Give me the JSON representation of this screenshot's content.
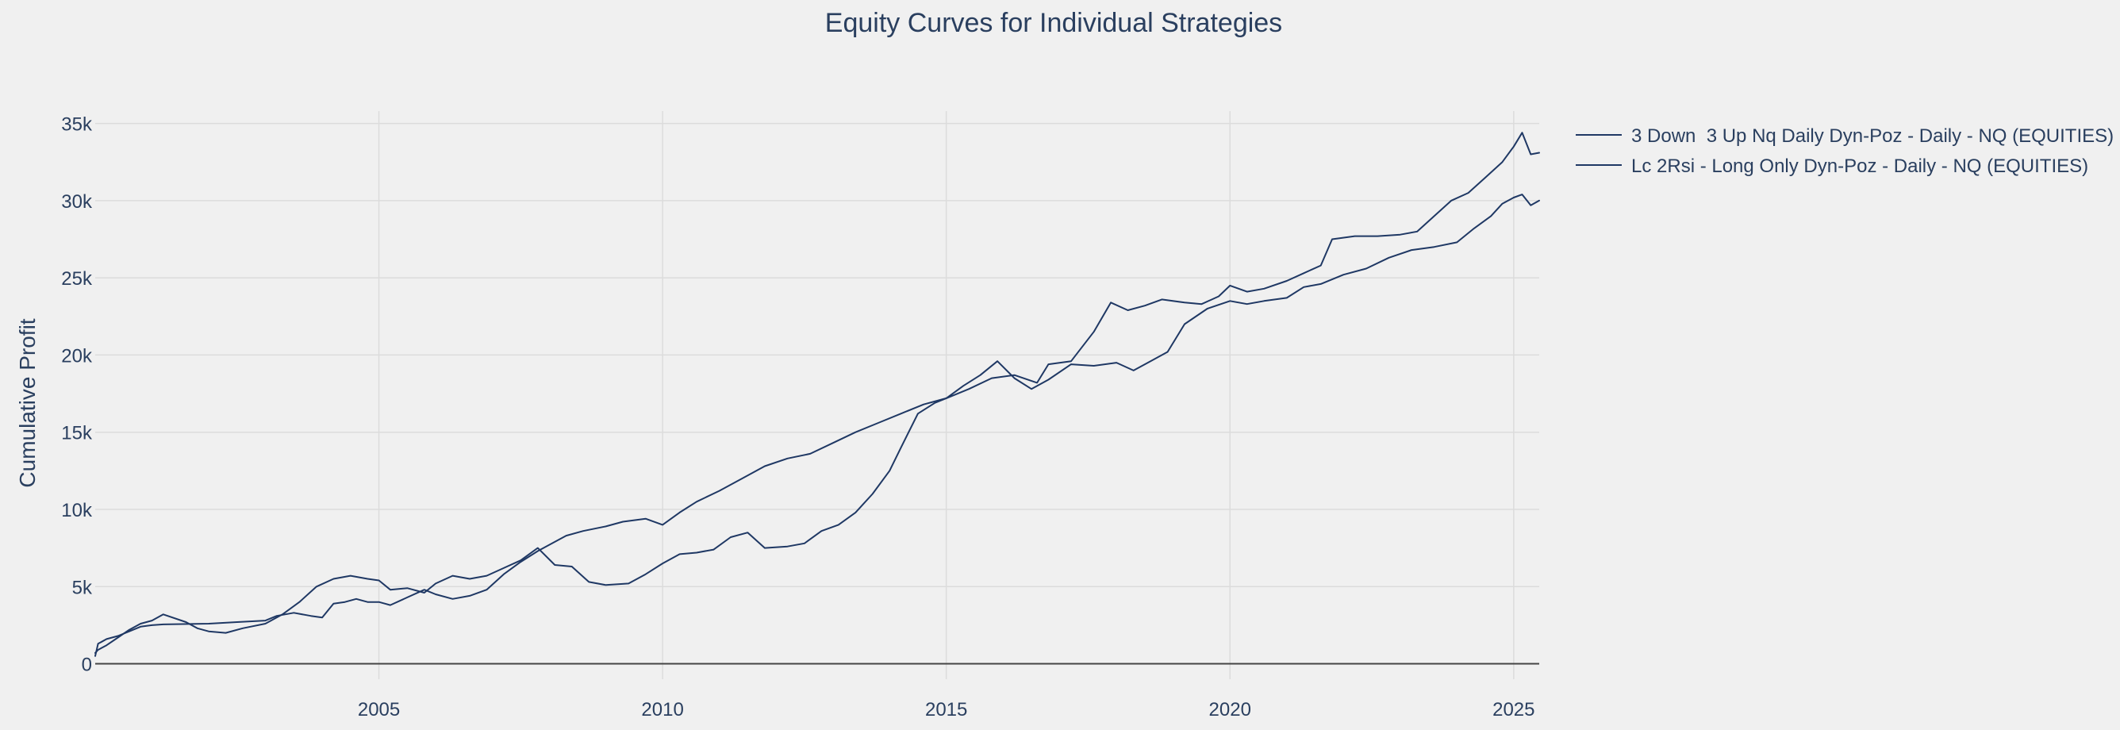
{
  "chart_data": {
    "type": "line",
    "title": "Equity Curves for Individual Strategies",
    "xlabel": "",
    "ylabel": "Cumulative Profit",
    "xlim": [
      2000.0,
      2025.45
    ],
    "ylim": [
      -1000,
      35800
    ],
    "x_ticks": [
      {
        "value": 2005,
        "label": "2005"
      },
      {
        "value": 2010,
        "label": "2010"
      },
      {
        "value": 2015,
        "label": "2015"
      },
      {
        "value": 2020,
        "label": "2020"
      },
      {
        "value": 2025,
        "label": "2025"
      }
    ],
    "y_ticks": [
      {
        "value": 0,
        "label": "0"
      },
      {
        "value": 5000,
        "label": "5k"
      },
      {
        "value": 10000,
        "label": "10k"
      },
      {
        "value": 15000,
        "label": "15k"
      },
      {
        "value": 20000,
        "label": "20k"
      },
      {
        "value": 25000,
        "label": "25k"
      },
      {
        "value": 30000,
        "label": "30k"
      },
      {
        "value": 35000,
        "label": "35k"
      }
    ],
    "grid": true,
    "legend_position": "top-right outside",
    "series": [
      {
        "name": "3 Down  3 Up Nq Daily Dyn-Poz - Daily - NQ (EQUITIES)",
        "color": "#1f3864",
        "points": [
          [
            2000.0,
            500
          ],
          [
            2000.05,
            1300
          ],
          [
            2000.2,
            1600
          ],
          [
            2000.4,
            1800
          ],
          [
            2000.6,
            2100
          ],
          [
            2000.8,
            2400
          ],
          [
            2001.0,
            2500
          ],
          [
            2001.2,
            2550
          ],
          [
            2002.0,
            2600
          ],
          [
            2002.5,
            2700
          ],
          [
            2003.0,
            2800
          ],
          [
            2003.2,
            3100
          ],
          [
            2003.5,
            3300
          ],
          [
            2003.8,
            3100
          ],
          [
            2004.0,
            3000
          ],
          [
            2004.2,
            3900
          ],
          [
            2004.4,
            4000
          ],
          [
            2004.6,
            4200
          ],
          [
            2004.8,
            4000
          ],
          [
            2005.0,
            4000
          ],
          [
            2005.2,
            3800
          ],
          [
            2005.5,
            4300
          ],
          [
            2005.8,
            4800
          ],
          [
            2006.0,
            4500
          ],
          [
            2006.3,
            4200
          ],
          [
            2006.6,
            4400
          ],
          [
            2006.9,
            4800
          ],
          [
            2007.2,
            5800
          ],
          [
            2007.5,
            6600
          ],
          [
            2007.8,
            7300
          ],
          [
            2008.0,
            7700
          ],
          [
            2008.3,
            8300
          ],
          [
            2008.6,
            8600
          ],
          [
            2009.0,
            8900
          ],
          [
            2009.3,
            9200
          ],
          [
            2009.7,
            9400
          ],
          [
            2010.0,
            9000
          ],
          [
            2010.3,
            9800
          ],
          [
            2010.6,
            10500
          ],
          [
            2011.0,
            11200
          ],
          [
            2011.4,
            12000
          ],
          [
            2011.8,
            12800
          ],
          [
            2012.2,
            13300
          ],
          [
            2012.6,
            13600
          ],
          [
            2013.0,
            14300
          ],
          [
            2013.4,
            15000
          ],
          [
            2013.8,
            15600
          ],
          [
            2014.2,
            16200
          ],
          [
            2014.6,
            16800
          ],
          [
            2015.0,
            17200
          ],
          [
            2015.4,
            17800
          ],
          [
            2015.8,
            18500
          ],
          [
            2016.2,
            18700
          ],
          [
            2016.6,
            18200
          ],
          [
            2016.8,
            19400
          ],
          [
            2017.2,
            19600
          ],
          [
            2017.6,
            21500
          ],
          [
            2017.9,
            23400
          ],
          [
            2018.2,
            22900
          ],
          [
            2018.5,
            23200
          ],
          [
            2018.8,
            23600
          ],
          [
            2019.2,
            23400
          ],
          [
            2019.5,
            23300
          ],
          [
            2019.8,
            23800
          ],
          [
            2020.0,
            24500
          ],
          [
            2020.3,
            24100
          ],
          [
            2020.6,
            24300
          ],
          [
            2021.0,
            24800
          ],
          [
            2021.3,
            25300
          ],
          [
            2021.6,
            25800
          ],
          [
            2021.8,
            27500
          ],
          [
            2022.2,
            27700
          ],
          [
            2022.6,
            27700
          ],
          [
            2023.0,
            27800
          ],
          [
            2023.3,
            28000
          ],
          [
            2023.6,
            29000
          ],
          [
            2023.9,
            30000
          ],
          [
            2024.2,
            30500
          ],
          [
            2024.5,
            31500
          ],
          [
            2024.8,
            32500
          ],
          [
            2025.0,
            33500
          ],
          [
            2025.15,
            34400
          ],
          [
            2025.3,
            33000
          ],
          [
            2025.45,
            33100
          ]
        ]
      },
      {
        "name": "Lc 2Rsi - Long Only Dyn-Poz - Daily - NQ (EQUITIES)",
        "color": "#1f3864",
        "points": [
          [
            2000.0,
            700
          ],
          [
            2000.05,
            900
          ],
          [
            2000.2,
            1200
          ],
          [
            2000.4,
            1700
          ],
          [
            2000.6,
            2200
          ],
          [
            2000.8,
            2600
          ],
          [
            2001.0,
            2800
          ],
          [
            2001.2,
            3200
          ],
          [
            2001.6,
            2700
          ],
          [
            2001.8,
            2300
          ],
          [
            2002.0,
            2100
          ],
          [
            2002.3,
            2000
          ],
          [
            2002.6,
            2300
          ],
          [
            2003.0,
            2600
          ],
          [
            2003.3,
            3200
          ],
          [
            2003.6,
            4000
          ],
          [
            2003.9,
            5000
          ],
          [
            2004.2,
            5500
          ],
          [
            2004.5,
            5700
          ],
          [
            2004.8,
            5500
          ],
          [
            2005.0,
            5400
          ],
          [
            2005.2,
            4800
          ],
          [
            2005.5,
            4900
          ],
          [
            2005.8,
            4600
          ],
          [
            2006.0,
            5200
          ],
          [
            2006.3,
            5700
          ],
          [
            2006.6,
            5500
          ],
          [
            2006.9,
            5700
          ],
          [
            2007.2,
            6200
          ],
          [
            2007.5,
            6700
          ],
          [
            2007.8,
            7500
          ],
          [
            2008.1,
            6400
          ],
          [
            2008.4,
            6300
          ],
          [
            2008.7,
            5300
          ],
          [
            2009.0,
            5100
          ],
          [
            2009.4,
            5200
          ],
          [
            2009.7,
            5800
          ],
          [
            2010.0,
            6500
          ],
          [
            2010.3,
            7100
          ],
          [
            2010.6,
            7200
          ],
          [
            2010.9,
            7400
          ],
          [
            2011.2,
            8200
          ],
          [
            2011.5,
            8500
          ],
          [
            2011.8,
            7500
          ],
          [
            2012.2,
            7600
          ],
          [
            2012.5,
            7800
          ],
          [
            2012.8,
            8600
          ],
          [
            2013.1,
            9000
          ],
          [
            2013.4,
            9800
          ],
          [
            2013.7,
            11000
          ],
          [
            2014.0,
            12500
          ],
          [
            2014.2,
            14000
          ],
          [
            2014.5,
            16200
          ],
          [
            2014.8,
            16900
          ],
          [
            2015.0,
            17200
          ],
          [
            2015.3,
            18000
          ],
          [
            2015.6,
            18700
          ],
          [
            2015.9,
            19600
          ],
          [
            2016.2,
            18500
          ],
          [
            2016.5,
            17800
          ],
          [
            2016.8,
            18400
          ],
          [
            2017.2,
            19400
          ],
          [
            2017.6,
            19300
          ],
          [
            2018.0,
            19500
          ],
          [
            2018.3,
            19000
          ],
          [
            2018.6,
            19600
          ],
          [
            2018.9,
            20200
          ],
          [
            2019.2,
            22000
          ],
          [
            2019.6,
            23000
          ],
          [
            2020.0,
            23500
          ],
          [
            2020.3,
            23300
          ],
          [
            2020.6,
            23500
          ],
          [
            2021.0,
            23700
          ],
          [
            2021.3,
            24400
          ],
          [
            2021.6,
            24600
          ],
          [
            2022.0,
            25200
          ],
          [
            2022.4,
            25600
          ],
          [
            2022.8,
            26300
          ],
          [
            2023.2,
            26800
          ],
          [
            2023.6,
            27000
          ],
          [
            2024.0,
            27300
          ],
          [
            2024.3,
            28200
          ],
          [
            2024.6,
            29000
          ],
          [
            2024.8,
            29800
          ],
          [
            2025.0,
            30200
          ],
          [
            2025.15,
            30400
          ],
          [
            2025.3,
            29700
          ],
          [
            2025.45,
            30000
          ]
        ]
      }
    ]
  }
}
